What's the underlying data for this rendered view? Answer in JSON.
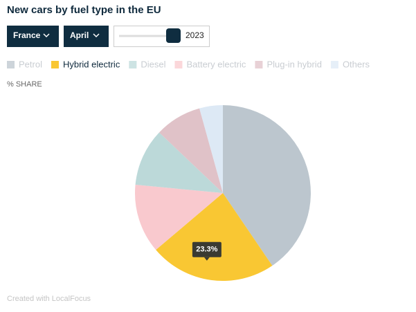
{
  "chart_data": {
    "type": "pie",
    "title": "New cars by fuel type in the EU",
    "controls": {
      "country": "France",
      "month": "April",
      "year": 2023
    },
    "axis_label": "% SHARE",
    "categories": [
      "Petrol",
      "Hybrid electric",
      "Diesel",
      "Battery electric",
      "Plug-in hybrid",
      "Others"
    ],
    "values": [
      40.5,
      23.3,
      10.6,
      12.7,
      8.6,
      4.3
    ],
    "value_labels": [
      null,
      "23.3%",
      null,
      null,
      null,
      null
    ],
    "colors": [
      "#bcc6ce",
      "#f9c733",
      "#bcd9d9",
      "#f9c9ce",
      "#e0c2c8",
      "#dde9f5"
    ],
    "highlighted": 1,
    "credit": "Created with LocalFocus"
  }
}
